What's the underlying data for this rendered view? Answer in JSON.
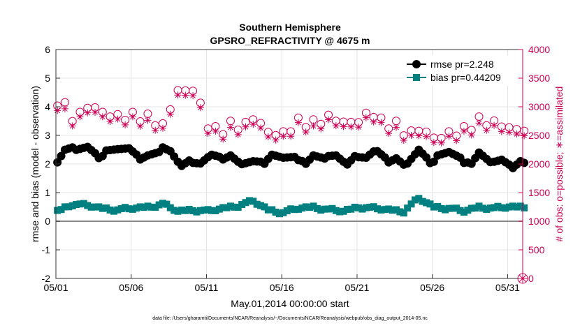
{
  "chart_data": {
    "type": "line",
    "title_line1": "Southern Hemisphere",
    "title_line2": "GPSRO_REFRACTIVITY @ 4675 m",
    "xlabel": "May.01,2014 00:00:00 start",
    "ylabel_left": "rmse and bias (model - observation)",
    "ylabel_right": "# of obs: o=possible; ∗=assimilated",
    "footer": "data file: /Users/gharamti/Documents/NCAR/Reanalysis/~/Documents/NCAR/Reanalysis/webpub/obs_diag_output_2014-05.nc",
    "xlim": [
      0,
      31
    ],
    "ylim_left": [
      -2,
      6
    ],
    "ylim_right": [
      0,
      4000
    ],
    "x_ticks": [
      0,
      5,
      10,
      15,
      20,
      25,
      30
    ],
    "x_tick_labels": [
      "05/01",
      "05/06",
      "05/11",
      "05/16",
      "05/21",
      "05/26",
      "05/31"
    ],
    "y_left_ticks": [
      -2,
      -1,
      0,
      1,
      2,
      3,
      4,
      5,
      6
    ],
    "y_right_ticks": [
      0,
      500,
      1000,
      1500,
      2000,
      2500,
      3000,
      3500,
      4000
    ],
    "legend_location": "top-right",
    "colors": {
      "rmse": "#000000",
      "bias": "#008080",
      "obs": "#cc0055",
      "zero_line": "#888888"
    },
    "rmse_key": [
      2.0,
      2.2,
      2.4,
      2.3,
      2.2,
      2.1,
      2.2,
      2.3,
      2.4,
      2.3,
      2.2
    ],
    "bias_key": [
      0.5,
      0.45,
      0.5,
      0.4,
      0.35,
      0.45,
      0.5,
      0.55,
      0.45,
      0.4,
      0.45
    ],
    "possible_key": [
      2700,
      2850,
      3050,
      2800,
      2750,
      2950,
      2850,
      2700,
      2800,
      2850,
      2900
    ],
    "assimilated_key": [
      2650,
      2800,
      2950,
      2750,
      2700,
      2900,
      2800,
      2650,
      2750,
      2800,
      2850
    ],
    "series": [
      {
        "name": "rmse",
        "legend": "rmse pr=2.248",
        "marker": "circle",
        "values": [
          2.2,
          2.6,
          2.5,
          2.3,
          2.6,
          2.4,
          2.2,
          2.6,
          2.1,
          2.0,
          2.2,
          2.3,
          2.1,
          2.0,
          2.2,
          2.3,
          2.1,
          2.2,
          2.3,
          2.1,
          2.2,
          2.4,
          2.2,
          2.0,
          2.4,
          2.1,
          2.5,
          2.0,
          2.3,
          2.1,
          2.0
        ]
      },
      {
        "name": "bias",
        "legend": "bias pr=0.44209",
        "marker": "square",
        "values": [
          0.35,
          0.6,
          0.55,
          0.45,
          0.4,
          0.45,
          0.5,
          0.6,
          0.35,
          0.4,
          0.35,
          0.45,
          0.55,
          0.7,
          0.4,
          0.3,
          0.45,
          0.5,
          0.4,
          0.35,
          0.5,
          0.45,
          0.4,
          0.35,
          0.8,
          0.5,
          0.45,
          0.35,
          0.5,
          0.45,
          0.5
        ]
      },
      {
        "name": "possible",
        "axis": "right",
        "marker": "open-circle",
        "values": [
          3100,
          2800,
          3000,
          2900,
          2800,
          2900,
          2750,
          2700,
          3250,
          3300,
          2700,
          2600,
          2650,
          2800,
          2550,
          2500,
          2800,
          2650,
          2850,
          2700,
          2750,
          2900,
          2700,
          2550,
          2600,
          2450,
          2500,
          2650,
          2700,
          2750,
          2600
        ]
      },
      {
        "name": "assimilated",
        "axis": "right",
        "marker": "asterisk",
        "values": [
          3050,
          2750,
          2950,
          2850,
          2750,
          2850,
          2700,
          2650,
          3200,
          3250,
          2650,
          2550,
          2600,
          2750,
          2500,
          2450,
          2750,
          2600,
          2800,
          2650,
          2700,
          2850,
          2650,
          2500,
          2550,
          2400,
          2450,
          2600,
          2650,
          2700,
          2550
        ]
      }
    ]
  }
}
